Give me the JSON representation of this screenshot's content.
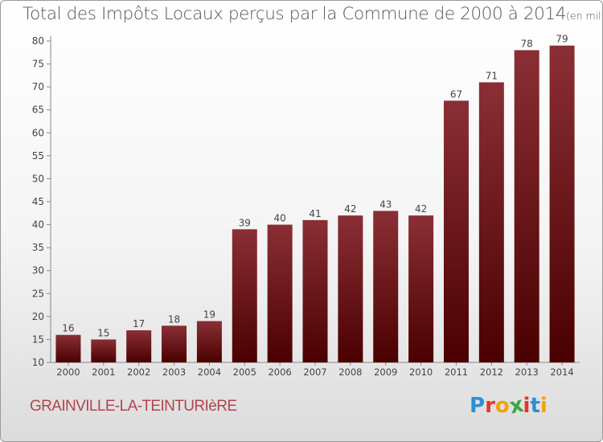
{
  "chart_data": {
    "type": "bar",
    "title": "Total des Impôts Locaux perçus par la Commune de 2000 à 2014",
    "unit_label": "(en milliers d'€)",
    "categories": [
      "2000",
      "2001",
      "2002",
      "2003",
      "2004",
      "2005",
      "2006",
      "2007",
      "2008",
      "2009",
      "2010",
      "2011",
      "2012",
      "2013",
      "2014"
    ],
    "values": [
      16,
      15,
      17,
      18,
      19,
      39,
      40,
      41,
      42,
      43,
      42,
      67,
      71,
      78,
      79
    ],
    "ylim": [
      10,
      80
    ],
    "yticks": [
      10,
      15,
      20,
      25,
      30,
      35,
      40,
      45,
      50,
      55,
      60,
      65,
      70,
      75,
      80
    ],
    "grid": false,
    "bar_color_top": "#8a2f35",
    "bar_color_bottom": "#4a0000"
  },
  "footer": {
    "commune": "GRAINVILLE-LA-TEINTURIèRE",
    "logo_letters": [
      "P",
      "r",
      "o",
      "x",
      "i",
      "t",
      "i"
    ],
    "logo_colors": [
      "#2e8fd6",
      "#e5352b",
      "#f2a20a",
      "#3aa543",
      "#e5352b",
      "#2e8fd6",
      "#f2a20a"
    ]
  }
}
